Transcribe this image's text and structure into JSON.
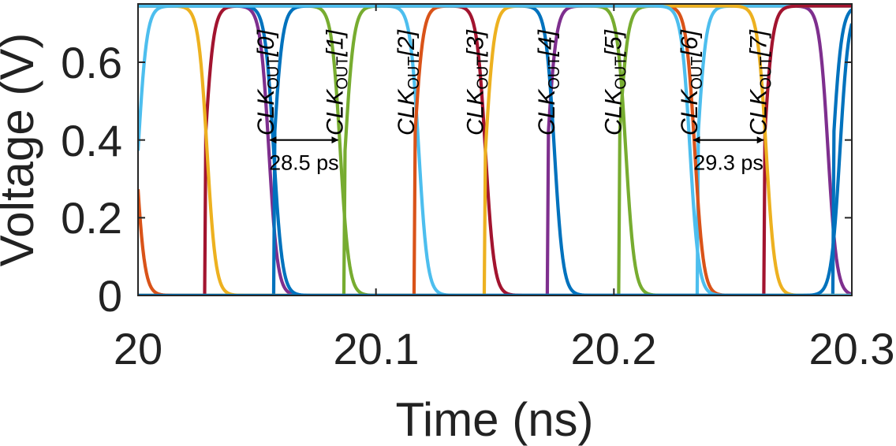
{
  "chart_data": {
    "type": "line",
    "title": "",
    "xlabel": "Time (ns)",
    "ylabel": "Voltage (V)",
    "xlim": [
      20,
      20.3
    ],
    "ylim": [
      0,
      0.75
    ],
    "grid": false,
    "xticks": [
      20,
      20.1,
      20.2,
      20.3
    ],
    "xtick_labels": [
      "20",
      "20.1",
      "20.2",
      "20.3"
    ],
    "yticks": [
      0,
      0.2,
      0.4,
      0.6
    ],
    "ytick_labels": [
      "0",
      "0.2",
      "0.4",
      "0.6"
    ],
    "period_ns": 0.235,
    "high_time_ns": 0.118,
    "transition_ns": 0.022,
    "vdd": 0.745,
    "series": [
      {
        "name": "CLK_OUT[0]",
        "label_prefix": "CLK",
        "label_sub": "OUT",
        "label_index": "[0]",
        "color": "#7e2f8e",
        "fall_time_ns": 20.055,
        "label_x_ns": 20.055
      },
      {
        "name": "CLK_OUT[1]",
        "label_prefix": "CLK",
        "label_sub": "OUT",
        "label_index": "[1]",
        "color": "#77ac30",
        "fall_time_ns": 20.085,
        "label_x_ns": 20.084
      },
      {
        "name": "CLK_OUT[2]",
        "label_prefix": "CLK",
        "label_sub": "OUT",
        "label_index": "[2]",
        "color": "#4dbeee",
        "fall_time_ns": 20.118,
        "label_x_ns": 20.114
      },
      {
        "name": "CLK_OUT[3]",
        "label_prefix": "CLK",
        "label_sub": "OUT",
        "label_index": "[3]",
        "color": "#a2142f",
        "fall_time_ns": 20.146,
        "label_x_ns": 20.143
      },
      {
        "name": "CLK_OUT[4]",
        "label_prefix": "CLK",
        "label_sub": "OUT",
        "label_index": "[4]",
        "color": "#0072bd",
        "fall_time_ns": 20.175,
        "label_x_ns": 20.173
      },
      {
        "name": "CLK_OUT[5]",
        "label_prefix": "CLK",
        "label_sub": "OUT",
        "label_index": "[5]",
        "color": "#77ac30",
        "fall_time_ns": 20.205,
        "label_x_ns": 20.201
      },
      {
        "name": "CLK_OUT[6]",
        "label_prefix": "CLK",
        "label_sub": "OUT",
        "label_index": "[6]",
        "color": "#d95319",
        "fall_time_ns": 20.234,
        "label_x_ns": 20.233
      },
      {
        "name": "CLK_OUT[7]",
        "label_prefix": "CLK",
        "label_sub": "OUT",
        "label_index": "[7]",
        "color": "#edb120",
        "fall_time_ns": 20.264,
        "label_x_ns": 20.262
      }
    ],
    "extra_series": [
      {
        "name": "blue-2",
        "color": "#0072bd",
        "fall_time_ns": 20.057,
        "edge": "fall"
      },
      {
        "name": "lightblue-2",
        "color": "#4dbeee",
        "fall_time_ns": 20.232,
        "edge": "fall"
      },
      {
        "name": "blue-3",
        "color": "#0072bd",
        "fall_time_ns": 20.295,
        "edge": "rise"
      }
    ],
    "annotations": [
      {
        "text": "28.5 ps",
        "from_ns": 20.0555,
        "to_ns": 20.084,
        "y_v": 0.4
      },
      {
        "text": "29.3 ps",
        "from_ns": 20.2335,
        "to_ns": 20.2628,
        "y_v": 0.4
      }
    ]
  }
}
